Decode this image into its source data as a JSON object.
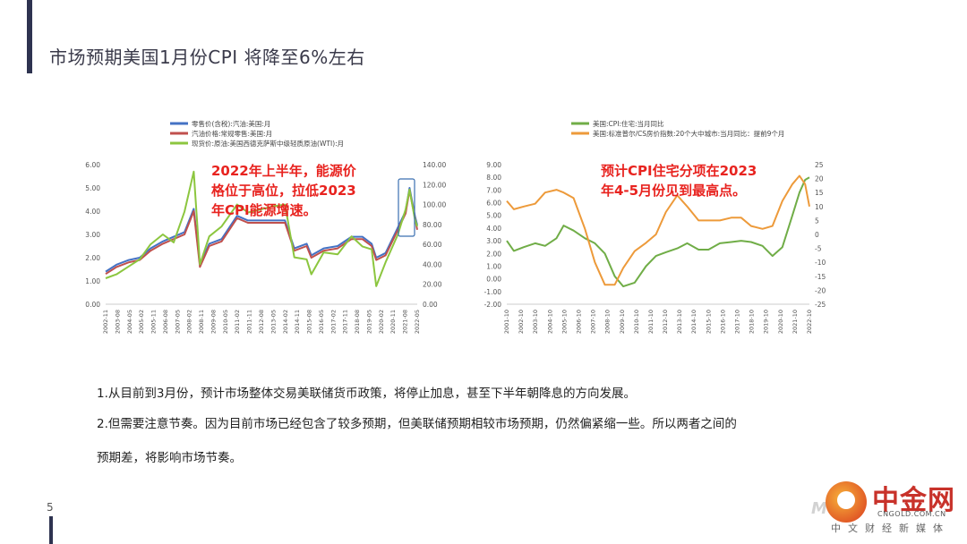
{
  "page": {
    "title": "市场预期美国1月份CPI 将降至6%左右",
    "page_number": "5"
  },
  "body": {
    "p1": "1.从目前到3月份，预计市场整体交易美联储货币政策，将停止加息，甚至下半年朝降息的方向发展。",
    "p2": "2.但需要注意节奏。因为目前市场已经包含了较多预期，但美联储预期相较市场预期，仍然偏紧缩一些。所以两者之间的",
    "p3": "预期差，将影响市场节奏。"
  },
  "logo": {
    "name": "中金网",
    "url": "CNGOLD.COM.CN",
    "slogan": "中文财经新媒体",
    "watermark": "Mo"
  },
  "chart_data": [
    {
      "type": "line",
      "legend": [
        "零售价(含税):汽油:美国:月",
        "汽油价格:常规零售:美国:月",
        "现货价:原油:美国西德克萨斯中级轻质原油(WTI):月"
      ],
      "colors": [
        "#4472c4",
        "#c0504d",
        "#8cc63f"
      ],
      "annotation": "2022年上半年，能源价格位于高位，拉低2023年CPI能源增速。",
      "annotation_lines": [
        "2022年上半年，能源价",
        "格位于高位，拉低2023",
        "年CPI能源增速。"
      ],
      "y_left_ticks": [
        "6.00",
        "5.00",
        "4.00",
        "3.00",
        "2.00",
        "1.00",
        "0.00"
      ],
      "y_right_ticks": [
        "140.00",
        "120.00",
        "100.00",
        "80.00",
        "60.00",
        "40.00",
        "20.00",
        "0.00"
      ],
      "x_ticks": [
        "2002-11",
        "2003-08",
        "2004-05",
        "2005-02",
        "2005-11",
        "2006-08",
        "2007-05",
        "2008-02",
        "2008-11",
        "2009-08",
        "2010-05",
        "2011-02",
        "2011-11",
        "2012-08",
        "2013-05",
        "2014-02",
        "2014-11",
        "2015-08",
        "2016-05",
        "2017-02",
        "2017-11",
        "2018-08",
        "2019-05",
        "2020-02",
        "2020-11",
        "2021-08",
        "2022-05"
      ],
      "ylim_left": [
        0,
        6
      ],
      "ylim_right": [
        0,
        140
      ],
      "x": [
        2002.8,
        2003.5,
        2004.3,
        2005.0,
        2005.7,
        2006.5,
        2007.2,
        2007.9,
        2008.5,
        2008.9,
        2009.5,
        2010.3,
        2011.3,
        2012.0,
        2012.8,
        2013.6,
        2014.4,
        2015.0,
        2015.8,
        2016.1,
        2016.9,
        2017.8,
        2018.7,
        2019.4,
        2020.0,
        2020.3,
        2020.9,
        2021.7,
        2022.2,
        2022.45,
        2022.8,
        2022.95
      ],
      "series": [
        {
          "name": "零售价(含税):汽油:美国:月",
          "axis": "left",
          "values": [
            1.4,
            1.7,
            1.9,
            2.0,
            2.4,
            2.7,
            2.9,
            3.1,
            4.1,
            1.7,
            2.6,
            2.8,
            3.8,
            3.6,
            3.6,
            3.6,
            3.6,
            2.4,
            2.6,
            2.1,
            2.4,
            2.5,
            2.9,
            2.9,
            2.6,
            2.0,
            2.2,
            3.3,
            4.0,
            5.0,
            3.8,
            3.4
          ]
        },
        {
          "name": "汽油价格:常规零售:美国:月",
          "axis": "left",
          "values": [
            1.3,
            1.6,
            1.8,
            1.9,
            2.3,
            2.6,
            2.8,
            3.0,
            4.0,
            1.6,
            2.5,
            2.7,
            3.7,
            3.5,
            3.5,
            3.5,
            3.5,
            2.3,
            2.5,
            2.0,
            2.3,
            2.4,
            2.8,
            2.8,
            2.5,
            1.9,
            2.1,
            3.2,
            3.9,
            4.9,
            3.7,
            3.2
          ]
        },
        {
          "name": "现货价:原油:美国西德克萨斯中级轻质原油(WTI):月",
          "axis": "right",
          "values": [
            26,
            30,
            38,
            45,
            60,
            70,
            62,
            93,
            133,
            40,
            68,
            78,
            100,
            92,
            95,
            98,
            100,
            47,
            45,
            30,
            52,
            50,
            68,
            58,
            55,
            18,
            42,
            70,
            95,
            115,
            85,
            78
          ]
        }
      ]
    },
    {
      "type": "line",
      "legend": [
        "美国:CPI:住宅:当月同比",
        "美国:标准普尔/CS房价指数:20个大中城市:当月同比：提前9个月"
      ],
      "colors": [
        "#70ad47",
        "#ed9a3a"
      ],
      "annotation": "预计CPI住宅分项在2023年4-5月份见到最高点。",
      "annotation_lines": [
        "预计CPI住宅分项在2023",
        "年4-5月份见到最高点。"
      ],
      "y_left_ticks": [
        "9.00",
        "8.00",
        "7.00",
        "6.00",
        "5.00",
        "4.00",
        "3.00",
        "2.00",
        "1.00",
        "0.00",
        "-1.00",
        "-2.00"
      ],
      "y_right_ticks": [
        "25",
        "20",
        "15",
        "10",
        "5",
        "0",
        "-5",
        "-10",
        "-15",
        "-20",
        "-25"
      ],
      "x_ticks": [
        "2001-10",
        "2002-10",
        "2003-10",
        "2004-10",
        "2005-10",
        "2006-10",
        "2007-10",
        "2008-10",
        "2009-10",
        "2010-10",
        "2011-10",
        "2012-10",
        "2013-10",
        "2014-10",
        "2015-10",
        "2016-10",
        "2017-10",
        "2018-10",
        "2019-10",
        "2020-10",
        "2021-10",
        "2022-10"
      ],
      "ylim_left": [
        -2,
        9
      ],
      "ylim_right": [
        -25,
        25
      ],
      "x": [
        2001.8,
        2002.3,
        2003.0,
        2003.8,
        2004.5,
        2005.3,
        2005.8,
        2006.5,
        2007.3,
        2008.0,
        2008.7,
        2009.4,
        2010.0,
        2010.8,
        2011.6,
        2012.3,
        2013.0,
        2013.8,
        2014.5,
        2015.3,
        2016.0,
        2016.8,
        2017.6,
        2018.3,
        2019.0,
        2019.8,
        2020.5,
        2021.2,
        2021.9,
        2022.4,
        2022.8,
        2023.1
      ],
      "series": [
        {
          "name": "美国:CPI:住宅:当月同比",
          "axis": "left",
          "values": [
            3.0,
            2.2,
            2.5,
            2.8,
            2.6,
            3.2,
            4.2,
            3.8,
            3.2,
            2.8,
            2.0,
            0.2,
            -0.6,
            -0.3,
            1.0,
            1.8,
            2.1,
            2.4,
            2.8,
            2.3,
            2.3,
            2.8,
            2.9,
            3.0,
            2.9,
            2.6,
            1.8,
            2.5,
            5.0,
            6.8,
            7.8,
            8.0
          ]
        },
        {
          "name": "美国:标准普尔/CS房价指数:20个大中城市:当月同比：提前9个月",
          "axis": "right",
          "values": [
            12,
            9,
            10,
            11,
            15,
            16,
            15,
            13,
            2,
            -10,
            -18,
            -18,
            -12,
            -6,
            -3,
            0,
            8,
            14,
            10,
            5,
            5,
            5,
            6,
            6,
            3,
            2,
            3,
            12,
            18,
            21,
            18,
            10
          ]
        }
      ]
    }
  ]
}
